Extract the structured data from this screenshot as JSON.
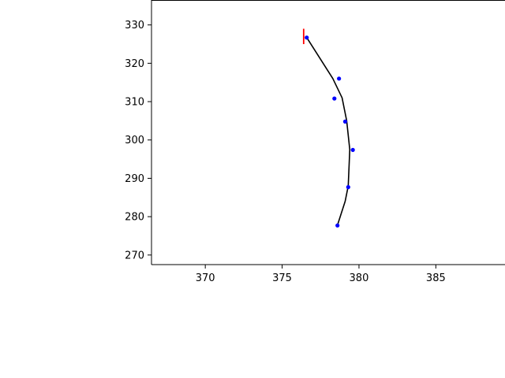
{
  "chart_data": {
    "type": "line",
    "title": "",
    "xlabel": "",
    "ylabel": "",
    "xlim": [
      366.5,
      389.5
    ],
    "ylim": [
      267.5,
      336.5
    ],
    "grid": false,
    "x_ticks": [
      370,
      375,
      380,
      385
    ],
    "y_ticks": [
      270,
      280,
      290,
      300,
      310,
      320,
      330
    ],
    "series": [
      {
        "style": "line",
        "color": "#000000",
        "x": [
          376.6,
          378.3,
          378.9,
          379.2,
          379.4,
          379.3,
          379.1,
          378.6
        ],
        "y": [
          326.7,
          316.0,
          311.0,
          305.0,
          297.5,
          288.0,
          284.0,
          277.8
        ]
      },
      {
        "style": "points",
        "color": "#0000ff",
        "x": [
          376.6,
          378.7,
          378.4,
          379.1,
          379.6,
          379.3,
          378.6
        ],
        "y": [
          326.7,
          316.0,
          310.8,
          304.8,
          297.4,
          287.7,
          277.7
        ]
      },
      {
        "style": "vertical-segment",
        "color": "#ff0000",
        "x": [
          376.4,
          376.4
        ],
        "y": [
          325.0,
          329.0
        ]
      }
    ]
  },
  "colors": {
    "axes": "#000000",
    "background": "#ffffff"
  }
}
